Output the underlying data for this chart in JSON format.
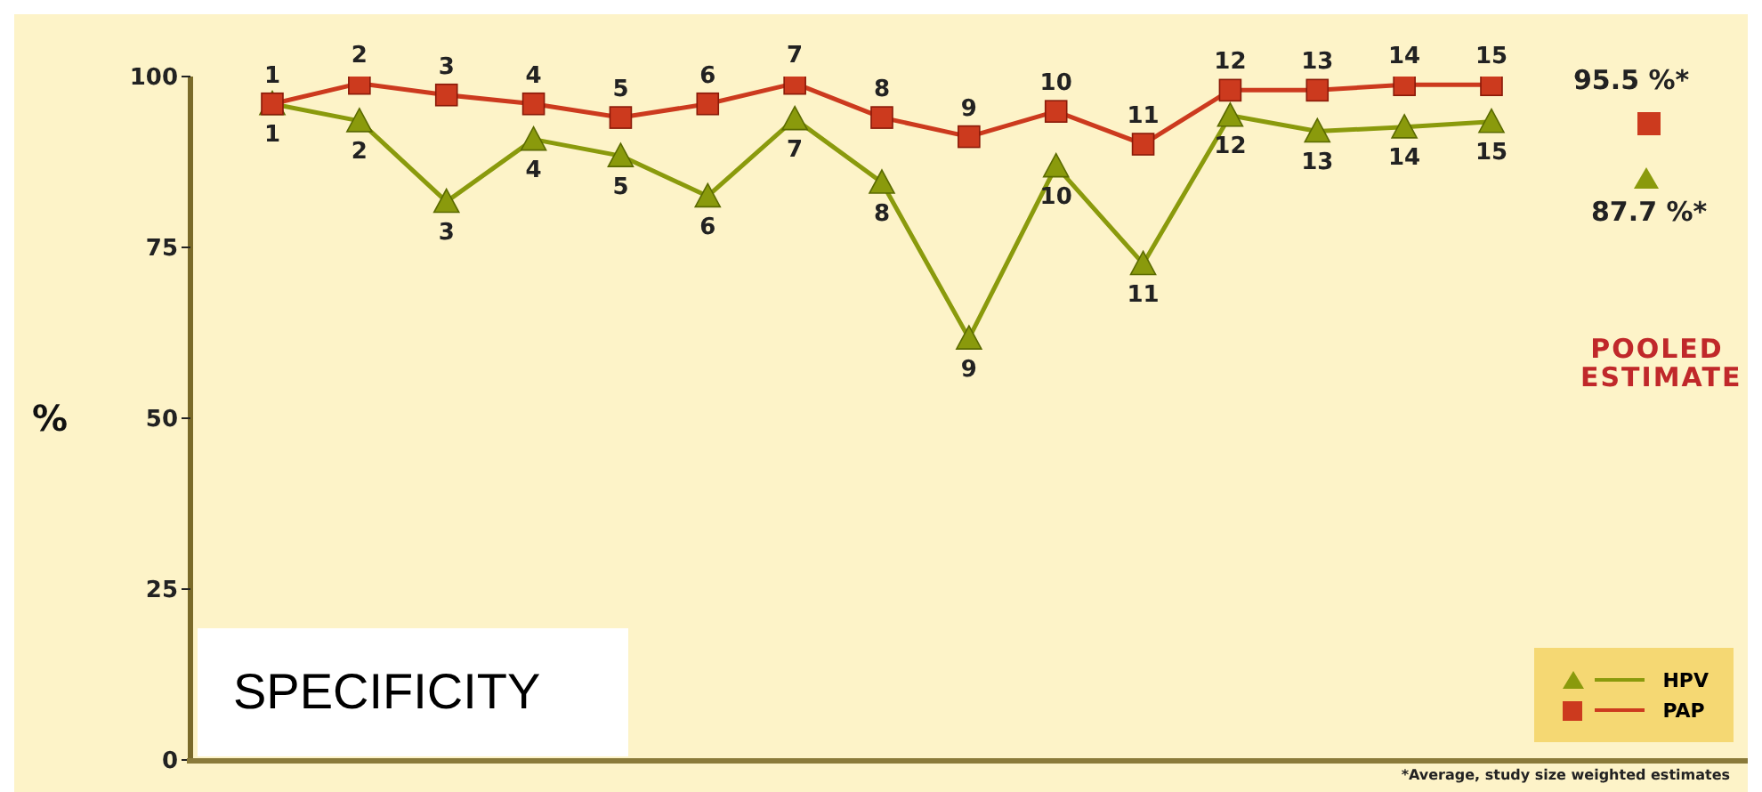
{
  "chart_data": {
    "type": "line",
    "title": "SPECIFICITY",
    "ylabel": "%",
    "categories": [
      "1",
      "2",
      "3",
      "4",
      "5",
      "6",
      "7",
      "8",
      "9",
      "10",
      "11",
      "12",
      "13",
      "14",
      "15"
    ],
    "series": [
      {
        "name": "HPV",
        "color": "#8a9a0c",
        "marker": "triangle",
        "values": [
          96,
          93.5,
          81.7,
          90.8,
          88.4,
          82.5,
          93.8,
          84.5,
          61.7,
          86.9,
          72.6,
          94.3,
          92,
          92.6,
          93.4
        ]
      },
      {
        "name": "PAP",
        "color": "#cc3a1e",
        "marker": "square",
        "values": [
          96,
          99,
          97.3,
          96,
          94,
          96,
          99,
          94,
          91.2,
          94.9,
          90.1,
          98,
          98,
          98.8,
          98.8
        ]
      }
    ],
    "ylim": [
      0,
      100
    ],
    "yticks": [
      0,
      25,
      50,
      75,
      100
    ],
    "legend": "bottom right",
    "annotations": [
      "95.5 %*",
      "87.7 %*",
      "POOLED ESTIMATE",
      "*Average, study size weighted estimates"
    ]
  }
}
